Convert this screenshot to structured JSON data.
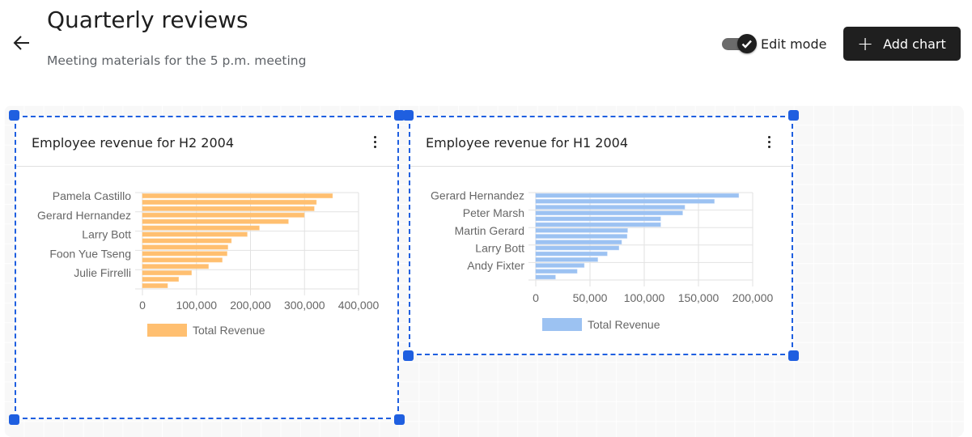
{
  "header": {
    "back_icon": "arrow-left-icon",
    "title": "Quarterly reviews",
    "subtitle": "Meeting materials for the 5 p.m. meeting",
    "edit_mode_label": "Edit mode",
    "edit_mode_on": true,
    "add_chart_label": "Add chart",
    "add_chart_icon": "plus-icon"
  },
  "colors": {
    "accent": "#1f5fe0",
    "button_bg": "#1f1f1f"
  },
  "cards": [
    {
      "title": "Employee revenue for H2 2004",
      "menu_icon": "kebab-menu-icon",
      "chart_data": {
        "type": "bar",
        "orientation": "horizontal",
        "color": "#ffbf70",
        "category_labels": [
          {
            "index": 0,
            "label": "Pamela Castillo"
          },
          {
            "index": 3,
            "label": "Gerard Hernandez"
          },
          {
            "index": 6,
            "label": "Larry Bott"
          },
          {
            "index": 9,
            "label": "Foon Yue Tseng"
          },
          {
            "index": 12,
            "label": "Julie Firrelli"
          }
        ],
        "series": [
          {
            "name": "Total Revenue",
            "values": [
              351600,
              321700,
              317700,
              299300,
              269900,
              216100,
              193700,
              164300,
              157900,
              156400,
              147400,
              122000,
              90600,
              66700,
              46300
            ]
          }
        ],
        "xlim": [
          0,
          400000
        ],
        "xticks": [
          "0",
          "100,000",
          "200,000",
          "300,000",
          "400,000"
        ],
        "xtick_values": [
          0,
          100000,
          200000,
          300000,
          400000
        ],
        "grid": true,
        "legend": "bottom"
      }
    },
    {
      "title": "Employee revenue for H1 2004",
      "menu_icon": "kebab-menu-icon",
      "chart_data": {
        "type": "bar",
        "orientation": "horizontal",
        "color": "#9cc2f2",
        "category_labels": [
          {
            "index": 0,
            "label": "Gerard Hernandez"
          },
          {
            "index": 3,
            "label": "Peter Marsh"
          },
          {
            "index": 6,
            "label": "Martin Gerard"
          },
          {
            "index": 9,
            "label": "Larry Bott"
          },
          {
            "index": 12,
            "label": "Andy Fixter"
          }
        ],
        "series": [
          {
            "name": "Total Revenue",
            "values": [
              187000,
              164500,
              137250,
              135250,
              115000,
              115000,
              84500,
              84000,
              79000,
              76500,
              65750,
              57000,
              44500,
              38000,
              18000
            ]
          }
        ],
        "xlim": [
          0,
          200000
        ],
        "xticks": [
          "0",
          "50,000",
          "100,000",
          "150,000",
          "200,000"
        ],
        "xtick_values": [
          0,
          50000,
          100000,
          150000,
          200000
        ],
        "grid": true,
        "legend": "bottom"
      }
    }
  ]
}
